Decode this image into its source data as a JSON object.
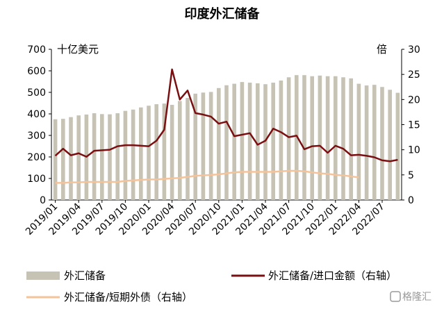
{
  "chart_data": {
    "type": "bar",
    "title": "印度外汇储备",
    "left_unit": "十亿美元",
    "right_unit": "倍",
    "ylim_left": [
      0,
      700
    ],
    "ylim_right": [
      0,
      30
    ],
    "left_ticks": [
      "0",
      "100",
      "200",
      "300",
      "400",
      "500",
      "600",
      "700"
    ],
    "right_ticks": [
      "0",
      "5",
      "10",
      "15",
      "20",
      "25",
      "30"
    ],
    "x_tick_labels": [
      "2019/01",
      "2019/04",
      "2019/07",
      "2019/10",
      "2020/01",
      "2020/04",
      "2020/07",
      "2020/10",
      "2021/01",
      "2021/04",
      "2021/07",
      "2021/10",
      "2022/01",
      "2022/04",
      "2022/07"
    ],
    "months": [
      "2019/01",
      "2019/02",
      "2019/03",
      "2019/04",
      "2019/05",
      "2019/06",
      "2019/07",
      "2019/08",
      "2019/09",
      "2019/10",
      "2019/11",
      "2019/12",
      "2020/01",
      "2020/02",
      "2020/03",
      "2020/04",
      "2020/05",
      "2020/06",
      "2020/07",
      "2020/08",
      "2020/09",
      "2020/10",
      "2020/11",
      "2020/12",
      "2021/01",
      "2021/02",
      "2021/03",
      "2021/04",
      "2021/05",
      "2021/06",
      "2021/07",
      "2021/08",
      "2021/09",
      "2021/10",
      "2021/11",
      "2021/12",
      "2022/01",
      "2022/02",
      "2022/03",
      "2022/04",
      "2022/05",
      "2022/06",
      "2022/07",
      "2022/08",
      "2022/09"
    ],
    "series": [
      {
        "name": "外汇储备",
        "axis": "left",
        "kind": "bar",
        "color": "#c6c3b5",
        "values": [
          375,
          377,
          385,
          393,
          397,
          403,
          399,
          398,
          403,
          414,
          420,
          430,
          438,
          445,
          448,
          442,
          460,
          474,
          494,
          499,
          502,
          520,
          533,
          540,
          548,
          545,
          542,
          538,
          545,
          555,
          570,
          580,
          580,
          575,
          578,
          575,
          575,
          570,
          565,
          540,
          532,
          535,
          525,
          512,
          498
        ]
      },
      {
        "name": "外汇储备/进口金额（右轴）",
        "axis": "right",
        "kind": "line",
        "color": "#7a0f12",
        "values": [
          8.8,
          10.2,
          8.9,
          9.3,
          8.6,
          9.8,
          9.9,
          10.0,
          10.7,
          10.9,
          10.9,
          10.8,
          10.7,
          11.8,
          14.0,
          26.0,
          20.0,
          21.8,
          17.3,
          17.0,
          16.6,
          15.2,
          15.6,
          12.7,
          13.0,
          13.3,
          11.0,
          11.8,
          14.2,
          13.5,
          12.5,
          12.8,
          10.1,
          10.7,
          10.8,
          9.4,
          10.8,
          10.2,
          8.9,
          9.0,
          8.8,
          8.5,
          7.9,
          7.7,
          8.0
        ]
      },
      {
        "name": "外汇储备/短期外债（右轴）",
        "axis": "right",
        "kind": "line",
        "color": "#f5c39a",
        "values": [
          3.4,
          3.4,
          3.5,
          3.5,
          3.6,
          3.6,
          3.6,
          3.6,
          3.6,
          3.8,
          3.9,
          4.0,
          4.1,
          4.1,
          4.2,
          4.3,
          4.4,
          4.6,
          4.8,
          4.9,
          5.0,
          5.1,
          5.3,
          5.5,
          5.6,
          5.6,
          5.6,
          5.6,
          5.6,
          5.7,
          5.8,
          5.8,
          5.7,
          5.5,
          5.3,
          5.2,
          5.0,
          4.9,
          4.7,
          4.5,
          null,
          null,
          null,
          null,
          null
        ]
      }
    ],
    "legend_position": "bottom",
    "grid": false
  },
  "watermark": "格隆汇"
}
